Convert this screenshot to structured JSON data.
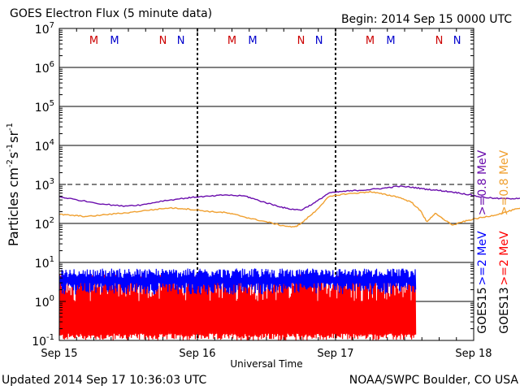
{
  "header": {
    "title": "GOES Electron Flux (5 minute data)",
    "begin": "Begin: 2014 Sep 15 0000 UTC"
  },
  "footer": {
    "updated": "Updated 2014 Sep 17 10:36:03 UTC",
    "credit": "NOAA/SWPC Boulder, CO USA"
  },
  "chart_data": {
    "type": "line",
    "title": "GOES Electron Flux (5 minute data)",
    "xlabel": "Universal Time",
    "ylabel_parts": [
      "Particles cm",
      "-2",
      "s",
      "-1",
      "sr",
      "-1"
    ],
    "yscale": "log",
    "ylim": [
      0.1,
      10000000
    ],
    "y_tick_labels": [
      {
        "base": "10",
        "exp": "-1"
      },
      {
        "base": "10",
        "exp": "0"
      },
      {
        "base": "10",
        "exp": "1"
      },
      {
        "base": "10",
        "exp": "2"
      },
      {
        "base": "10",
        "exp": "3"
      },
      {
        "base": "10",
        "exp": "4"
      },
      {
        "base": "10",
        "exp": "5"
      },
      {
        "base": "10",
        "exp": "6"
      },
      {
        "base": "10",
        "exp": "7"
      }
    ],
    "x_ticks": [
      "Sep 15",
      "Sep 16",
      "Sep 17",
      "Sep 18"
    ],
    "xlim_days": [
      0,
      3
    ],
    "threshold_line": 1000,
    "series": [
      {
        "name": ">=2",
        "satellite": "GOES15",
        "color": "#0000ff",
        "low": [
          1.5,
          3.0
        ],
        "high": [
          4.0,
          7.0
        ]
      },
      {
        "name": ">=2",
        "satellite": "GOES13",
        "color": "#ff0000",
        "low": [
          0.1,
          0.15
        ],
        "high": [
          1.0,
          5.0
        ]
      },
      {
        "name": ">=0.8",
        "satellite": "GOES15",
        "color": "#6a0dad",
        "points": [
          [
            0.0,
            480
          ],
          [
            0.1,
            420
          ],
          [
            0.3,
            320
          ],
          [
            0.45,
            280
          ],
          [
            0.6,
            300
          ],
          [
            0.75,
            380
          ],
          [
            0.9,
            440
          ],
          [
            1.0,
            480
          ],
          [
            1.1,
            500
          ],
          [
            1.2,
            540
          ],
          [
            1.35,
            500
          ],
          [
            1.45,
            380
          ],
          [
            1.55,
            300
          ],
          [
            1.65,
            240
          ],
          [
            1.75,
            220
          ],
          [
            1.85,
            340
          ],
          [
            1.95,
            600
          ],
          [
            2.05,
            660
          ],
          [
            2.15,
            700
          ],
          [
            2.25,
            740
          ],
          [
            2.35,
            800
          ],
          [
            2.45,
            900
          ],
          [
            2.55,
            850
          ],
          [
            2.65,
            760
          ],
          [
            2.75,
            700
          ],
          [
            2.85,
            640
          ],
          [
            2.95,
            560
          ],
          [
            3.05,
            480
          ],
          [
            3.15,
            440
          ],
          [
            3.25,
            430
          ],
          [
            3.35,
            450
          ]
        ]
      },
      {
        "name": ">=0.8",
        "satellite": "GOES13",
        "color": "#f0a030",
        "points": [
          [
            0.0,
            170
          ],
          [
            0.1,
            160
          ],
          [
            0.2,
            150
          ],
          [
            0.35,
            170
          ],
          [
            0.5,
            190
          ],
          [
            0.65,
            220
          ],
          [
            0.8,
            250
          ],
          [
            0.9,
            240
          ],
          [
            1.0,
            220
          ],
          [
            1.1,
            200
          ],
          [
            1.2,
            190
          ],
          [
            1.3,
            160
          ],
          [
            1.4,
            130
          ],
          [
            1.5,
            110
          ],
          [
            1.6,
            90
          ],
          [
            1.7,
            80
          ],
          [
            1.75,
            100
          ],
          [
            1.85,
            200
          ],
          [
            1.95,
            480
          ],
          [
            2.05,
            560
          ],
          [
            2.15,
            600
          ],
          [
            2.25,
            650
          ],
          [
            2.35,
            560
          ],
          [
            2.45,
            480
          ],
          [
            2.55,
            350
          ],
          [
            2.62,
            200
          ],
          [
            2.66,
            110
          ],
          [
            2.72,
            180
          ],
          [
            2.78,
            130
          ],
          [
            2.85,
            90
          ],
          [
            2.92,
            110
          ],
          [
            3.0,
            130
          ],
          [
            3.1,
            150
          ],
          [
            3.2,
            180
          ],
          [
            3.3,
            230
          ],
          [
            3.4,
            260
          ]
        ]
      }
    ],
    "legend": [
      {
        "text": ">=0.8 MeV",
        "color": "#6a0dad",
        "group": "GOES15"
      },
      {
        "text": ">=0.8 MeV",
        "color": "#f0a030",
        "group": "GOES13"
      },
      {
        "text": ">=2 MeV",
        "color": "#0000ff",
        "group": "GOES15"
      },
      {
        "text": ">=2 MeV",
        "color": "#ff0000",
        "group": "GOES13"
      }
    ],
    "legend_group_labels": [
      "GOES15",
      "GOES13"
    ],
    "markers": [
      {
        "day": 0.25,
        "label": "M",
        "color": "#cc0000"
      },
      {
        "day": 0.4,
        "label": "M",
        "color": "#0000cc"
      },
      {
        "day": 0.75,
        "label": "N",
        "color": "#cc0000"
      },
      {
        "day": 0.88,
        "label": "N",
        "color": "#0000cc"
      },
      {
        "day": 1.25,
        "label": "M",
        "color": "#cc0000"
      },
      {
        "day": 1.4,
        "label": "M",
        "color": "#0000cc"
      },
      {
        "day": 1.75,
        "label": "N",
        "color": "#cc0000"
      },
      {
        "day": 1.88,
        "label": "N",
        "color": "#0000cc"
      },
      {
        "day": 2.25,
        "label": "M",
        "color": "#cc0000"
      },
      {
        "day": 2.4,
        "label": "M",
        "color": "#0000cc"
      },
      {
        "day": 2.75,
        "label": "N",
        "color": "#cc0000"
      },
      {
        "day": 2.88,
        "label": "N",
        "color": "#0000cc"
      }
    ],
    "data_end_day": 2.58
  }
}
